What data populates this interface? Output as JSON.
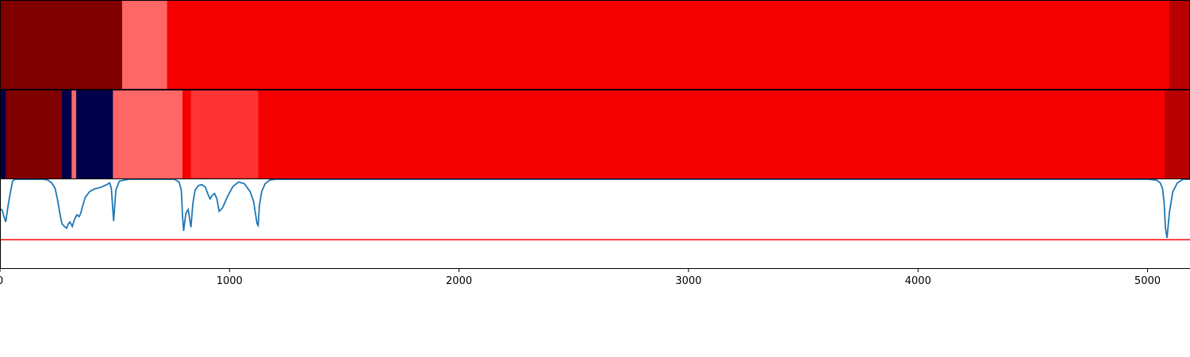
{
  "chart_data": {
    "type": "heatmap",
    "xlim": [
      0,
      5185
    ],
    "x_ticks": [
      "0",
      "1000",
      "2000",
      "3000",
      "4000",
      "5000"
    ],
    "tracks": [
      {
        "segments": [
          {
            "start": 0,
            "end": 532,
            "color": "#800000"
          },
          {
            "start": 532,
            "end": 728,
            "color": "#ff6666"
          },
          {
            "start": 728,
            "end": 5095,
            "color": "#f50000"
          },
          {
            "start": 5095,
            "end": 5185,
            "color": "#b80000"
          }
        ]
      },
      {
        "segments": [
          {
            "start": 0,
            "end": 25,
            "color": "#00004a"
          },
          {
            "start": 25,
            "end": 270,
            "color": "#800000"
          },
          {
            "start": 270,
            "end": 312,
            "color": "#00004a"
          },
          {
            "start": 312,
            "end": 332,
            "color": "#ff6666"
          },
          {
            "start": 332,
            "end": 492,
            "color": "#00004a"
          },
          {
            "start": 492,
            "end": 795,
            "color": "#ff6666"
          },
          {
            "start": 795,
            "end": 832,
            "color": "#f50000"
          },
          {
            "start": 832,
            "end": 1125,
            "color": "#ff3333"
          },
          {
            "start": 1125,
            "end": 5075,
            "color": "#f50000"
          },
          {
            "start": 5075,
            "end": 5185,
            "color": "#b80000"
          }
        ]
      }
    ],
    "line_plot": {
      "ylim": [
        0,
        1
      ],
      "threshold": 0.32,
      "threshold_color": "#ff0000",
      "line_color": "#1f77b4",
      "x": [
        0,
        10,
        15,
        25,
        35,
        45,
        55,
        65,
        80,
        110,
        150,
        190,
        210,
        225,
        240,
        250,
        262,
        270,
        280,
        290,
        298,
        305,
        315,
        325,
        335,
        345,
        352,
        360,
        372,
        390,
        410,
        440,
        465,
        478,
        485,
        490,
        495,
        505,
        520,
        560,
        620,
        700,
        760,
        780,
        790,
        795,
        800,
        810,
        820,
        832,
        840,
        850,
        865,
        880,
        895,
        905,
        915,
        925,
        935,
        945,
        955,
        970,
        990,
        1015,
        1040,
        1065,
        1090,
        1105,
        1115,
        1120,
        1125,
        1130,
        1140,
        1155,
        1175,
        1200,
        1260,
        1500,
        2500,
        3500,
        4500,
        4900,
        5000,
        5040,
        5055,
        5065,
        5072,
        5078,
        5085,
        5095,
        5110,
        5130,
        5155,
        5185
      ],
      "y": [
        0.67,
        0.65,
        0.6,
        0.52,
        0.7,
        0.85,
        0.98,
        1.0,
        1.0,
        1.0,
        1.0,
        1.0,
        0.99,
        0.96,
        0.9,
        0.78,
        0.6,
        0.5,
        0.47,
        0.45,
        0.5,
        0.52,
        0.47,
        0.55,
        0.6,
        0.58,
        0.62,
        0.7,
        0.8,
        0.86,
        0.89,
        0.91,
        0.94,
        0.96,
        0.9,
        0.72,
        0.53,
        0.88,
        0.98,
        1.0,
        1.0,
        1.0,
        1.0,
        0.97,
        0.88,
        0.6,
        0.42,
        0.62,
        0.66,
        0.46,
        0.72,
        0.88,
        0.93,
        0.94,
        0.91,
        0.84,
        0.78,
        0.82,
        0.84,
        0.78,
        0.64,
        0.68,
        0.8,
        0.92,
        0.97,
        0.95,
        0.86,
        0.75,
        0.58,
        0.5,
        0.48,
        0.7,
        0.86,
        0.95,
        0.99,
        1.0,
        1.0,
        1.0,
        1.0,
        1.0,
        1.0,
        1.0,
        1.0,
        0.99,
        0.96,
        0.9,
        0.75,
        0.45,
        0.34,
        0.62,
        0.86,
        0.96,
        1.0,
        1.0
      ]
    }
  }
}
